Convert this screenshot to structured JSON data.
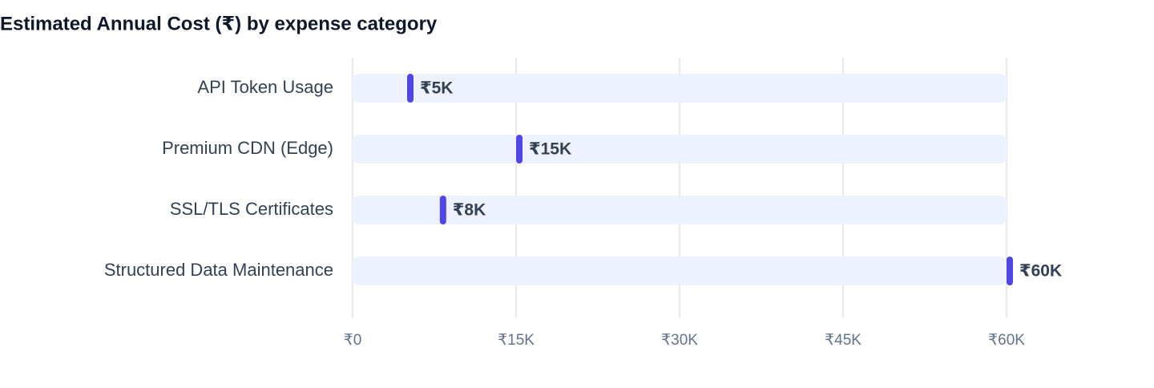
{
  "chart_data": {
    "type": "bar",
    "orientation": "horizontal",
    "title": "Estimated Annual Cost (₹) by expense category",
    "categories": [
      "API Token Usage",
      "Premium CDN (Edge)",
      "SSL/TLS Certificates",
      "Structured Data Maintenance"
    ],
    "values": [
      5000,
      15000,
      8000,
      60000
    ],
    "value_labels": [
      "₹5K",
      "₹15K",
      "₹8K",
      "₹60K"
    ],
    "color": "#4f46e5",
    "track_color": "#eef2ff",
    "xlim": [
      0,
      60000
    ],
    "xticks": [
      {
        "value": 0,
        "label": "₹0"
      },
      {
        "value": 15000,
        "label": "₹15K"
      },
      {
        "value": 30000,
        "label": "₹30K"
      },
      {
        "value": 45000,
        "label": "₹45K"
      },
      {
        "value": 60000,
        "label": "₹60K"
      }
    ],
    "grid": true
  }
}
